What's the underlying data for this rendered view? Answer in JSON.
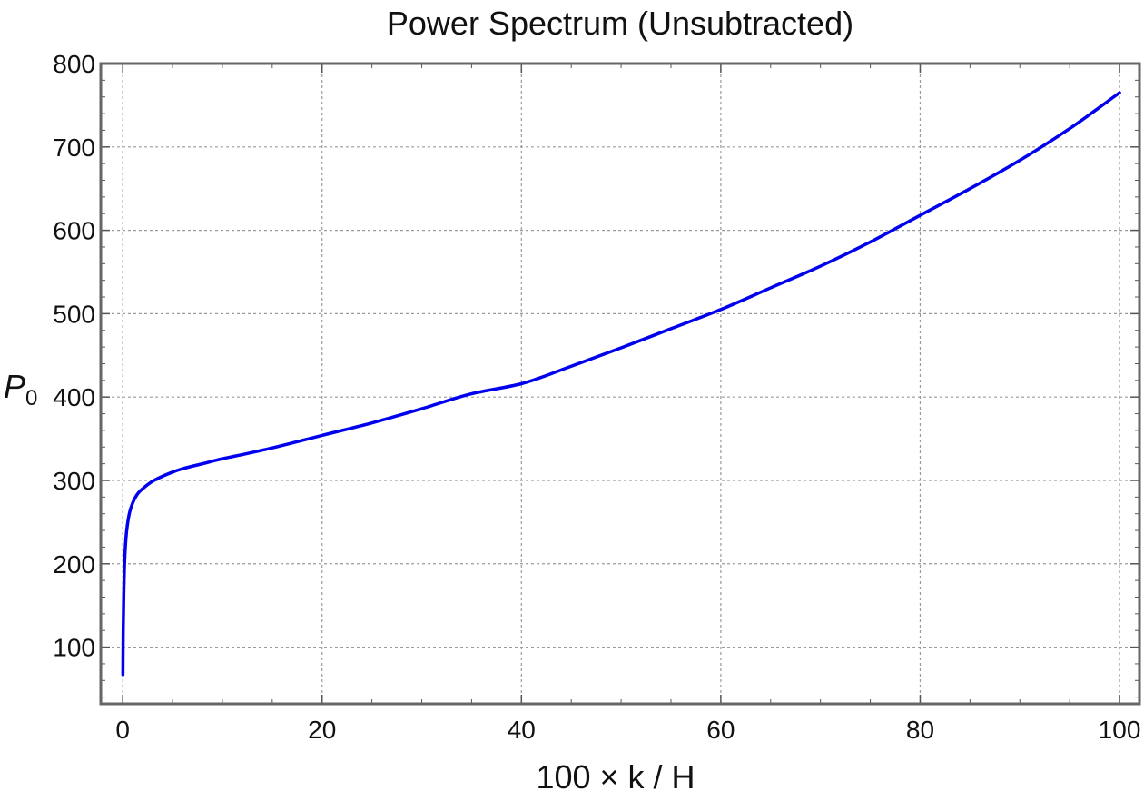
{
  "chart_data": {
    "type": "line",
    "title": "Power Spectrum (Unsubtracted)",
    "xlabel": "100 × k / H",
    "ylabel": "P",
    "ylabel_subscript": "0",
    "xlim": [
      -2.2,
      102
    ],
    "ylim": [
      32,
      800
    ],
    "x_ticks": [
      0,
      20,
      40,
      60,
      80,
      100
    ],
    "y_ticks": [
      100,
      200,
      300,
      400,
      500,
      600,
      700,
      800
    ],
    "x_minor_step": 5,
    "y_minor_step": 20,
    "grid": true,
    "legend": "none",
    "series": [
      {
        "color": "#0000ee",
        "x": [
          0.02,
          0.05,
          0.1,
          0.2,
          0.4,
          0.7,
          1,
          1.5,
          2,
          3,
          4,
          5,
          6,
          8,
          10,
          12,
          15,
          20,
          25,
          30,
          35,
          40,
          45,
          50,
          55,
          60,
          65,
          70,
          75,
          80,
          85,
          90,
          95,
          100
        ],
        "y": [
          67,
          120,
          160,
          205,
          240,
          262,
          273,
          284,
          290,
          299,
          305,
          310,
          314,
          320,
          326,
          331,
          339,
          354,
          369,
          386,
          404,
          416,
          437,
          459,
          482,
          505,
          531,
          557,
          586,
          618,
          650,
          684,
          722,
          765
        ]
      }
    ]
  }
}
